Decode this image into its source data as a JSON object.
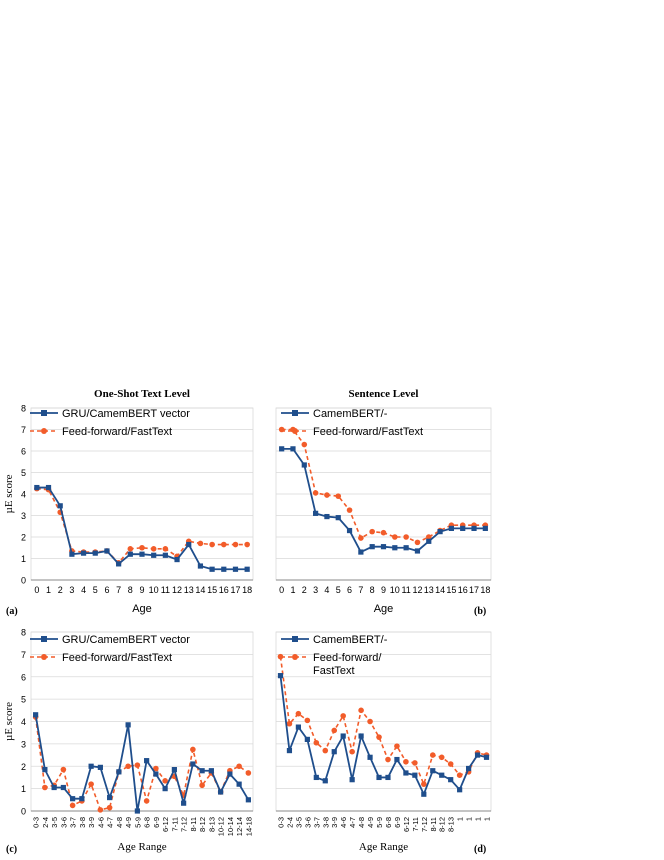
{
  "colors": {
    "blue": "#1f4e8c",
    "orange": "#f25c2a",
    "grid": "#d9d9d9"
  },
  "chart_data": [
    {
      "id": "a",
      "type": "line",
      "title": "One-Shot Text Level",
      "xlabel": "Age",
      "ylabel": "µE score",
      "panel_tag": "(a)",
      "ylim": [
        0,
        8
      ],
      "yticks": [
        "0",
        "1",
        "2",
        "3",
        "4",
        "5",
        "6",
        "7",
        "8"
      ],
      "categories": [
        "0",
        "1",
        "2",
        "3",
        "4",
        "5",
        "6",
        "7",
        "8",
        "9",
        "10",
        "11",
        "12",
        "13",
        "14",
        "15",
        "16",
        "17",
        "18"
      ],
      "series": [
        {
          "name": "GRU/CamemBERT vector",
          "style": "solid-square",
          "values": [
            4.3,
            4.3,
            3.45,
            1.2,
            1.25,
            1.25,
            1.35,
            0.75,
            1.2,
            1.2,
            1.15,
            1.15,
            0.95,
            1.65,
            0.65,
            0.5,
            0.5,
            0.5,
            0.5
          ]
        },
        {
          "name": "Feed-forward/FastText",
          "style": "dashed-circle",
          "values": [
            4.25,
            4.2,
            3.15,
            1.35,
            1.3,
            1.3,
            1.35,
            0.8,
            1.45,
            1.5,
            1.45,
            1.45,
            1.1,
            1.8,
            1.7,
            1.65,
            1.65,
            1.65,
            1.65
          ]
        }
      ]
    },
    {
      "id": "b",
      "type": "line",
      "title": "Sentence Level",
      "xlabel": "Age",
      "ylabel": "",
      "panel_tag": "(b)",
      "ylim": [
        0,
        8
      ],
      "categories": [
        "0",
        "1",
        "2",
        "3",
        "4",
        "5",
        "6",
        "7",
        "8",
        "9",
        "10",
        "11",
        "12",
        "13",
        "14",
        "15",
        "16",
        "17",
        "18"
      ],
      "series": [
        {
          "name": "CamemBERT/-",
          "style": "solid-square",
          "values": [
            6.1,
            6.1,
            5.35,
            3.1,
            2.95,
            2.9,
            2.3,
            1.3,
            1.55,
            1.55,
            1.5,
            1.5,
            1.35,
            1.8,
            2.25,
            2.4,
            2.4,
            2.4,
            2.4
          ]
        },
        {
          "name": "Feed-forward/FastText",
          "style": "dashed-circle",
          "values": [
            7.0,
            7.0,
            6.3,
            4.05,
            3.95,
            3.9,
            3.25,
            1.95,
            2.25,
            2.2,
            2.0,
            2.0,
            1.75,
            2.0,
            2.3,
            2.55,
            2.55,
            2.55,
            2.55
          ]
        }
      ]
    },
    {
      "id": "c",
      "type": "line",
      "title": "",
      "xlabel": "Age Range",
      "ylabel": "µE score",
      "panel_tag": "(c)",
      "ylim": [
        0,
        8
      ],
      "yticks": [
        "0",
        "1",
        "2",
        "3",
        "4",
        "5",
        "6",
        "7",
        "8"
      ],
      "categories": [
        "0-3",
        "2-4",
        "3-5",
        "3-6",
        "3-7",
        "3-8",
        "3-9",
        "4-6",
        "4-7",
        "4-8",
        "4-9",
        "5-9",
        "6-8",
        "6-9",
        "6-12",
        "7-11",
        "7-12",
        "8-11",
        "8-12",
        "8-13",
        "10-12",
        "10-14",
        "12-14",
        "14-18"
      ],
      "series": [
        {
          "name": "GRU/CamemBERT vector",
          "style": "solid-square",
          "values": [
            4.3,
            1.85,
            1.05,
            1.05,
            0.55,
            0.55,
            2.0,
            1.95,
            0.6,
            1.75,
            3.85,
            0.0,
            2.25,
            1.65,
            1.0,
            1.85,
            0.35,
            2.1,
            1.8,
            1.8,
            0.85,
            1.65,
            1.2,
            0.5
          ]
        },
        {
          "name": "Feed-forward/FastText",
          "style": "dashed-circle",
          "values": [
            4.2,
            1.05,
            1.15,
            1.85,
            0.25,
            0.45,
            1.2,
            0.05,
            0.15,
            1.75,
            2.0,
            2.05,
            0.45,
            1.9,
            1.35,
            1.55,
            0.7,
            2.75,
            1.15,
            1.7,
            0.85,
            1.8,
            2.0,
            1.7
          ]
        }
      ]
    },
    {
      "id": "d",
      "type": "line",
      "title": "",
      "xlabel": "Age Range",
      "ylabel": "",
      "panel_tag": "(d)",
      "ylim": [
        0,
        8
      ],
      "categories": [
        "0-3",
        "2-4",
        "3-5",
        "3-6",
        "3-7",
        "3-8",
        "3-9",
        "4-6",
        "4-7",
        "4-8",
        "4-9",
        "5-9",
        "6-8",
        "6-9",
        "6-12",
        "7-11",
        "7-12",
        "8-11",
        "8-12",
        "8-13",
        "1",
        "1",
        "1",
        "1"
      ],
      "series": [
        {
          "name": "CamemBERT/-",
          "style": "solid-square",
          "values": [
            6.05,
            2.7,
            3.75,
            3.2,
            1.5,
            1.35,
            2.65,
            3.35,
            1.4,
            3.35,
            2.4,
            1.5,
            1.5,
            2.3,
            1.7,
            1.6,
            0.75,
            1.8,
            1.6,
            1.4,
            0.95,
            1.9,
            2.5,
            2.4
          ]
        },
        {
          "name": "Feed-forward/\nFastText",
          "style": "dashed-circle",
          "values": [
            6.9,
            3.9,
            4.35,
            4.05,
            3.05,
            2.7,
            3.6,
            4.25,
            2.65,
            4.5,
            4.0,
            3.3,
            2.3,
            2.9,
            2.2,
            2.15,
            1.2,
            2.5,
            2.4,
            2.1,
            1.6,
            1.75,
            2.6,
            2.5
          ]
        }
      ]
    }
  ]
}
